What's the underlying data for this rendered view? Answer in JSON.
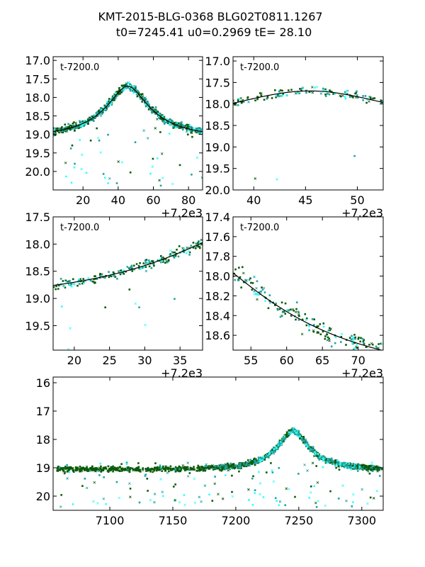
{
  "figure": {
    "title_line1": "KMT-2015-BLG-0368 BLG02T0811.1267",
    "title_line2": "t0=7245.41 u0=0.2969 tE=  28.10"
  },
  "chart_data": [
    {
      "type": "scatter",
      "panel": "top-left",
      "annotation": "t-7200.0",
      "offset_label": "+7.2e3",
      "xlim": [
        3,
        88
      ],
      "ylim": [
        20.5,
        16.9
      ],
      "xticks": [
        20,
        40,
        60,
        80
      ],
      "xtick_labels": [
        "20",
        "40",
        "60",
        "80"
      ],
      "yticks": [
        17.0,
        17.5,
        18.0,
        18.5,
        19.0,
        19.5,
        20.0
      ],
      "ytick_labels": [
        "17.0",
        "17.5",
        "18.0",
        "18.5",
        "19.0",
        "19.5",
        "20.0"
      ],
      "model_curve": true
    },
    {
      "type": "scatter",
      "panel": "top-right",
      "annotation": "t-7200.0",
      "offset_label": "+7.2e3",
      "xlim": [
        38,
        52.5
      ],
      "ylim": [
        20.0,
        16.9
      ],
      "xticks": [
        40,
        45,
        50
      ],
      "xtick_labels": [
        "40",
        "45",
        "50"
      ],
      "yticks": [
        17.0,
        17.5,
        18.0,
        18.5,
        19.0,
        19.5,
        20.0
      ],
      "ytick_labels": [
        "17.0",
        "17.5",
        "18.0",
        "18.5",
        "19.0",
        "19.5",
        "20.0"
      ],
      "model_curve": true
    },
    {
      "type": "scatter",
      "panel": "middle-left",
      "annotation": "t-7200.0",
      "offset_label": "+7.2e3",
      "xlim": [
        17,
        38.2
      ],
      "ylim": [
        19.95,
        17.5
      ],
      "xticks": [
        20,
        25,
        30,
        35
      ],
      "xtick_labels": [
        "20",
        "25",
        "30",
        "35"
      ],
      "yticks": [
        17.5,
        18.0,
        18.5,
        19.0,
        19.5
      ],
      "ytick_labels": [
        "17.5",
        "18.0",
        "18.5",
        "19.0",
        "19.5"
      ],
      "model_curve": true
    },
    {
      "type": "scatter",
      "panel": "middle-right",
      "annotation": "t-7200.0",
      "offset_label": "+7.2e3",
      "xlim": [
        52.5,
        73.5
      ],
      "ylim": [
        18.75,
        17.4
      ],
      "xticks": [
        55,
        60,
        65,
        70
      ],
      "xtick_labels": [
        "55",
        "60",
        "65",
        "70"
      ],
      "yticks": [
        17.4,
        17.6,
        17.8,
        18.0,
        18.2,
        18.4,
        18.6
      ],
      "ytick_labels": [
        "17.4",
        "17.6",
        "17.8",
        "18.0",
        "18.2",
        "18.4",
        "18.6"
      ],
      "model_curve": true
    },
    {
      "type": "scatter",
      "panel": "bottom",
      "annotation": "",
      "offset_label": "",
      "xlim": [
        7055,
        7317
      ],
      "ylim": [
        20.5,
        15.8
      ],
      "xticks": [
        7100,
        7150,
        7200,
        7250,
        7300
      ],
      "xtick_labels": [
        "7100",
        "7150",
        "7200",
        "7250",
        "7300"
      ],
      "yticks": [
        16,
        17,
        18,
        19,
        20
      ],
      "ytick_labels": [
        "16",
        "17",
        "18",
        "19",
        "20"
      ],
      "model_curve": false
    }
  ],
  "model": {
    "t0": 7245.41,
    "u0": 0.2969,
    "tE": 28.1,
    "mag_base": 19.05,
    "mag_offset": 7200.0
  },
  "colors": {
    "data_dark": "#0a5a0a",
    "data_teal": "#1fa3a3",
    "data_cyan": "#33ffff",
    "model": "#000000"
  }
}
